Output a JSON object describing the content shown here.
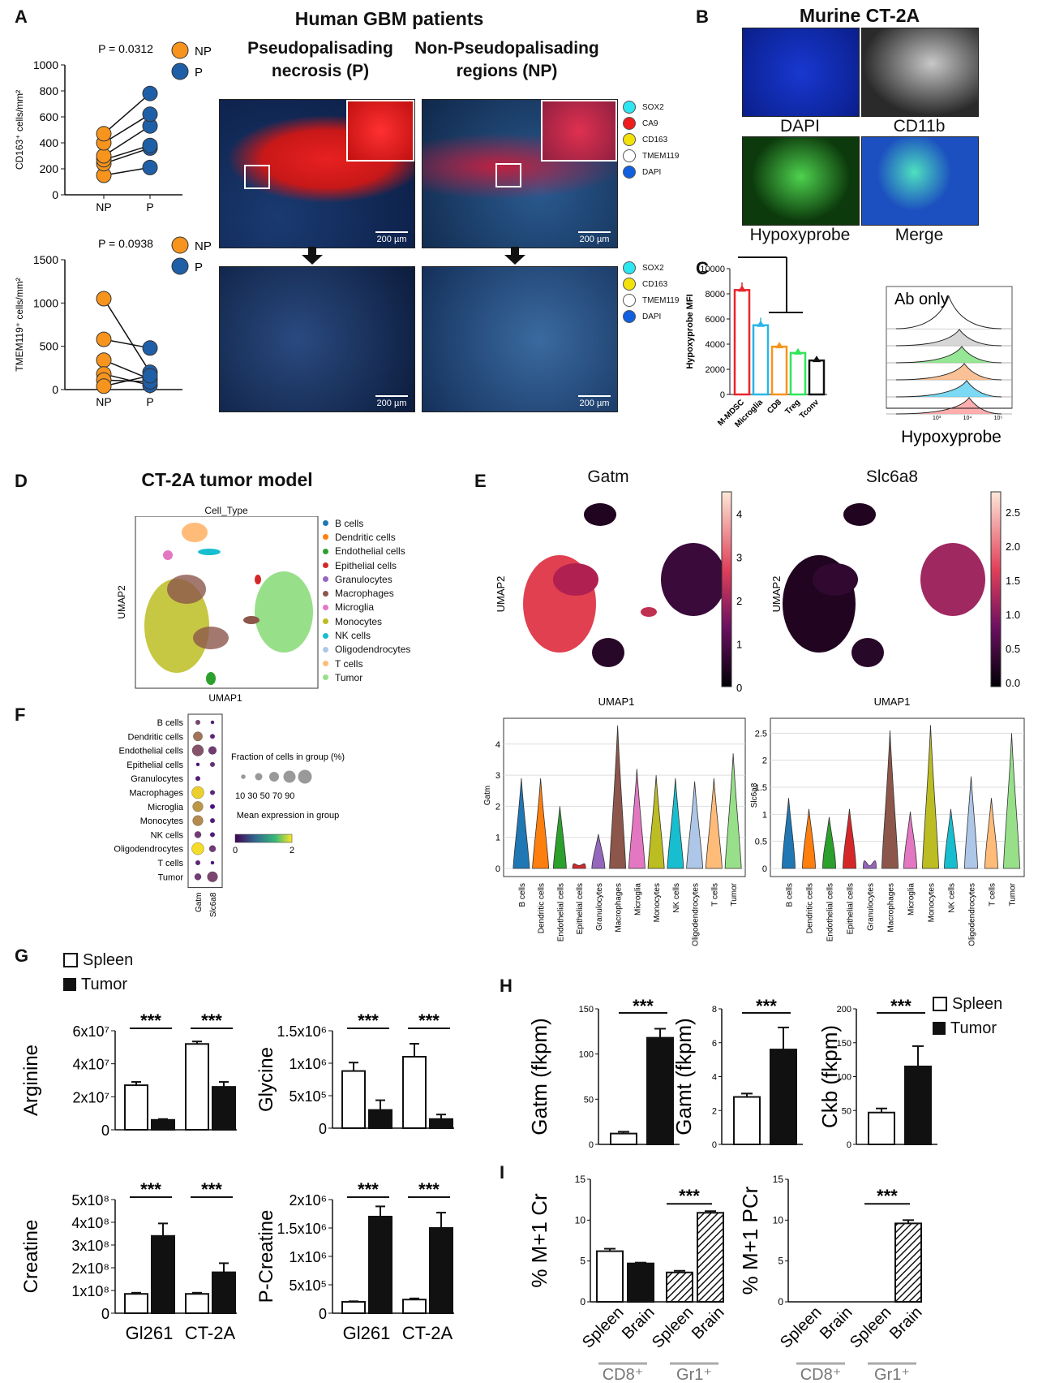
{
  "panels": {
    "A": "A",
    "B": "B",
    "C": "C",
    "D": "D",
    "E": "E",
    "F": "F",
    "G": "G",
    "H": "H",
    "I": "I"
  },
  "panelA": {
    "title": "Human GBM patients",
    "col_p": "Pseudopalisading necrosis (P)",
    "col_np": "Non-Pseudopalisading regions (NP)",
    "scale": "200 µm",
    "legend_top": [
      {
        "label": "SOX2",
        "color": "#2ee6f0"
      },
      {
        "label": "CA9",
        "color": "#ee1c1c"
      },
      {
        "label": "CD163",
        "color": "#f2e20a"
      },
      {
        "label": "TMEM119",
        "color": "#ffffff"
      },
      {
        "label": "DAPI",
        "color": "#1060e0"
      }
    ],
    "legend_bottom": [
      {
        "label": "SOX2",
        "color": "#2ee6f0"
      },
      {
        "label": "CD163",
        "color": "#f2e20a"
      },
      {
        "label": "TMEM119",
        "color": "#ffffff"
      },
      {
        "label": "DAPI",
        "color": "#1060e0"
      }
    ]
  },
  "panelB": {
    "title": "Murine CT-2A",
    "labels": [
      "DAPI",
      "CD11b",
      "Hypoxyprobe",
      "Merge"
    ]
  },
  "panelD": {
    "title": "CT-2A tumor model",
    "plot_title": "Cell_Type",
    "xlabel": "UMAP1",
    "ylabel": "UMAP2",
    "legend": [
      {
        "label": "B cells",
        "color": "#1f77b4"
      },
      {
        "label": "Dendritic cells",
        "color": "#ff7f0e"
      },
      {
        "label": "Endothelial cells",
        "color": "#2ca02c"
      },
      {
        "label": "Epithelial cells",
        "color": "#d62728"
      },
      {
        "label": "Granulocytes",
        "color": "#9467bd"
      },
      {
        "label": "Macrophages",
        "color": "#8c564b"
      },
      {
        "label": "Microglia",
        "color": "#e377c2"
      },
      {
        "label": "Monocytes",
        "color": "#bcbd22"
      },
      {
        "label": "NK cells",
        "color": "#17becf"
      },
      {
        "label": "Oligodendrocytes",
        "color": "#aec7e8"
      },
      {
        "label": "T cells",
        "color": "#ffbb78"
      },
      {
        "label": "Tumor",
        "color": "#98df8a"
      }
    ]
  },
  "panelE": {
    "left_title": "Gatm",
    "right_title": "Slc6a8",
    "xlabel": "UMAP1",
    "ylabel": "UMAP2",
    "left_ticks": [
      "4",
      "3",
      "2",
      "1",
      "0"
    ],
    "right_ticks": [
      "2.5",
      "2.0",
      "1.5",
      "1.0",
      "0.5",
      "0.0"
    ]
  },
  "chart_data": [
    {
      "id": "A1",
      "type": "paired-scatter",
      "ylabel": "CD163⁺ cells/mm²",
      "categories": [
        "NP",
        "P"
      ],
      "ylim": [
        0,
        1000
      ],
      "yticks": [
        0,
        200,
        400,
        600,
        800,
        1000
      ],
      "annotation": "P = 0.0312",
      "legend": [
        {
          "label": "NP",
          "color": "#f7941d"
        },
        {
          "label": "P",
          "color": "#1f5fa8"
        }
      ],
      "pairs": [
        [
          150,
          210
        ],
        [
          240,
          360
        ],
        [
          270,
          380
        ],
        [
          300,
          530
        ],
        [
          400,
          620
        ],
        [
          470,
          780
        ]
      ]
    },
    {
      "id": "A2",
      "type": "paired-scatter",
      "ylabel": "TMEM119⁺ cells/mm²",
      "categories": [
        "NP",
        "P"
      ],
      "ylim": [
        0,
        1500
      ],
      "yticks": [
        0,
        500,
        1000,
        1500
      ],
      "annotation": "P = 0.0938",
      "legend": [
        {
          "label": "NP",
          "color": "#f7941d"
        },
        {
          "label": "P",
          "color": "#1f5fa8"
        }
      ],
      "pairs": [
        [
          1050,
          200
        ],
        [
          580,
          480
        ],
        [
          340,
          120
        ],
        [
          180,
          50
        ],
        [
          110,
          90
        ],
        [
          40,
          160
        ]
      ]
    },
    {
      "id": "C1",
      "type": "bar",
      "ylabel": "Hypoxyprobe MFI",
      "categories": [
        "M-MDSC",
        "Microglia",
        "CD8",
        "Treg",
        "Tconv"
      ],
      "values": [
        8300,
        5500,
        3800,
        3300,
        2700
      ],
      "errors": [
        600,
        600,
        200,
        150,
        200
      ],
      "colors": [
        "#e8262b",
        "#2bb6e8",
        "#f7941d",
        "#2ee65a",
        "#111111"
      ],
      "ylim": [
        0,
        10000
      ],
      "yticks": [
        0,
        2000,
        4000,
        6000,
        8000,
        10000
      ],
      "annotation": "*"
    },
    {
      "id": "C2",
      "type": "histogram-overlay",
      "xlabel": "Hypoxyprobe",
      "label": "Ab only",
      "xticks": [
        "10³",
        "10⁴",
        "10⁵"
      ]
    },
    {
      "id": "F",
      "type": "dotplot",
      "genes": [
        "Gatm",
        "Slc6a8"
      ],
      "groups": [
        "B cells",
        "Dendritic cells",
        "Endothelial cells",
        "Epithelial cells",
        "Granulocytes",
        "Macrophages",
        "Microglia",
        "Monocytes",
        "NK cells",
        "Oligodendrocytes",
        "T cells",
        "Tumor"
      ],
      "mean_expression": [
        [
          0.6,
          0.2
        ],
        [
          1.0,
          0.3
        ],
        [
          0.7,
          0.5
        ],
        [
          0.1,
          0.4
        ],
        [
          0.2,
          0.0
        ],
        [
          1.8,
          0.3
        ],
        [
          1.3,
          0.1
        ],
        [
          1.2,
          0.2
        ],
        [
          0.5,
          0.2
        ],
        [
          1.9,
          0.5
        ],
        [
          0.3,
          0.1
        ],
        [
          0.5,
          0.6
        ]
      ],
      "fraction": [
        [
          10,
          5
        ],
        [
          40,
          10
        ],
        [
          60,
          30
        ],
        [
          5,
          10
        ],
        [
          10,
          0
        ],
        [
          70,
          10
        ],
        [
          50,
          10
        ],
        [
          50,
          10
        ],
        [
          20,
          10
        ],
        [
          70,
          20
        ],
        [
          10,
          5
        ],
        [
          20,
          50
        ]
      ],
      "size_legend_title": "Fraction of cells in group (%)",
      "size_legend": "10 30 50 70 90",
      "color_legend_title": "Mean expression in group",
      "color_range": [
        "0",
        "2"
      ]
    },
    {
      "id": "E1",
      "type": "violin",
      "ylabel": "Gatm",
      "categories": [
        "B cells",
        "Dendritic cells",
        "Endothelial cells",
        "Epithelial cells",
        "Granulocytes",
        "Macrophages",
        "Microglia",
        "Monocytes",
        "NK cells",
        "Oligodendrocytes",
        "T cells",
        "Tumor"
      ],
      "max": [
        2.9,
        2.9,
        2.0,
        0.1,
        1.1,
        4.6,
        3.2,
        3.0,
        2.9,
        2.8,
        2.9,
        3.7
      ],
      "ylim": [
        0,
        4.7
      ],
      "yticks": [
        0,
        1,
        2,
        3,
        4
      ]
    },
    {
      "id": "E2",
      "type": "violin",
      "ylabel": "Slc6a8",
      "categories": [
        "B cells",
        "Dendritic cells",
        "Endothelial cells",
        "Epithelial cells",
        "Granulocytes",
        "Macrophages",
        "Microglia",
        "Monocytes",
        "NK cells",
        "Oligodendrocytes",
        "T cells",
        "Tumor"
      ],
      "max": [
        1.3,
        1.1,
        0.95,
        1.1,
        0.05,
        2.55,
        1.05,
        2.65,
        1.1,
        1.7,
        1.3,
        2.5
      ],
      "ylim": [
        0,
        2.7
      ],
      "yticks": [
        0,
        0.5,
        1.0,
        1.5,
        2.0,
        2.5
      ]
    },
    {
      "id": "G1",
      "type": "bar",
      "ylabel": "Arginine",
      "categories": [
        "Gl261",
        "CT-2A"
      ],
      "series": [
        {
          "name": "Spleen",
          "values": [
            27000000.0,
            52000000.0
          ],
          "errors": [
            2000000.0,
            1500000.0
          ]
        },
        {
          "name": "Tumor",
          "values": [
            6000000.0,
            26000000.0
          ],
          "errors": [
            500000.0,
            3000000.0
          ]
        }
      ],
      "ylim": [
        0,
        60000000.0
      ],
      "yticks": [
        "0",
        "2x10⁷",
        "4x10⁷",
        "6x10⁷"
      ],
      "annotation": "***"
    },
    {
      "id": "G2",
      "type": "bar",
      "ylabel": "Glycine",
      "categories": [
        "Gl261",
        "CT-2A"
      ],
      "series": [
        {
          "name": "Spleen",
          "values": [
            880000.0,
            1100000.0
          ],
          "errors": [
            130000.0,
            200000.0
          ]
        },
        {
          "name": "Tumor",
          "values": [
            280000.0,
            140000.0
          ],
          "errors": [
            150000.0,
            70000.0
          ]
        }
      ],
      "ylim": [
        0,
        1500000.0
      ],
      "yticks": [
        "0",
        "5x10⁵",
        "1x10⁶",
        "1.5x10⁶"
      ],
      "annotation": "***"
    },
    {
      "id": "G3",
      "type": "bar",
      "ylabel": "Creatine",
      "categories": [
        "Gl261",
        "CT-2A"
      ],
      "series": [
        {
          "name": "Spleen",
          "values": [
            85000000.0,
            85000000.0
          ],
          "errors": [
            5000000.0,
            5000000.0
          ]
        },
        {
          "name": "Tumor",
          "values": [
            340000000.0,
            180000000.0
          ],
          "errors": [
            55000000.0,
            40000000.0
          ]
        }
      ],
      "ylim": [
        0,
        500000000.0
      ],
      "yticks": [
        "0",
        "1x10⁸",
        "2x10⁸",
        "3x10⁸",
        "4x10⁸",
        "5x10⁸"
      ],
      "annotation": "***"
    },
    {
      "id": "G4",
      "type": "bar",
      "ylabel": "P-Creatine",
      "categories": [
        "Gl261",
        "CT-2A"
      ],
      "series": [
        {
          "name": "Spleen",
          "values": [
            200000.0,
            240000.0
          ],
          "errors": [
            10000.0,
            20000.0
          ]
        },
        {
          "name": "Tumor",
          "values": [
            1700000.0,
            1500000.0
          ],
          "errors": [
            180000.0,
            270000.0
          ]
        }
      ],
      "ylim": [
        0,
        2000000.0
      ],
      "yticks": [
        "0",
        "5x10⁵",
        "1x10⁶",
        "1.5x10⁶",
        "2x10⁶"
      ],
      "annotation": "***"
    },
    {
      "id": "H1",
      "type": "bar",
      "ylabel": "Gatm (fkpm)",
      "categories": [
        "Spleen",
        "Tumor"
      ],
      "values": [
        12,
        118
      ],
      "errors": [
        2,
        10
      ],
      "ylim": [
        0,
        150
      ],
      "yticks": [
        0,
        50,
        100,
        150
      ],
      "annotation": "***"
    },
    {
      "id": "H2",
      "type": "bar",
      "ylabel": "Gamt (fkpm)",
      "categories": [
        "Spleen",
        "Tumor"
      ],
      "values": [
        2.8,
        5.6
      ],
      "errors": [
        0.2,
        1.3
      ],
      "ylim": [
        0,
        8
      ],
      "yticks": [
        0,
        2,
        4,
        6,
        8
      ],
      "annotation": "***"
    },
    {
      "id": "H3",
      "type": "bar",
      "ylabel": "Ckb (fkpm)",
      "categories": [
        "Spleen",
        "Tumor"
      ],
      "values": [
        47,
        115
      ],
      "errors": [
        6,
        30
      ],
      "ylim": [
        0,
        200
      ],
      "yticks": [
        0,
        50,
        100,
        150,
        200
      ],
      "annotation": "***"
    },
    {
      "id": "I1",
      "type": "bar",
      "ylabel": "% M+1 Cr",
      "categories": [
        "Spleen",
        "Brain",
        "Spleen",
        "Brain"
      ],
      "groups": [
        "CD8⁺",
        "Gr1⁺"
      ],
      "values": [
        6.2,
        4.7,
        3.6,
        10.9
      ],
      "errors": [
        0.3,
        0.1,
        0.2,
        0.2
      ],
      "ylim": [
        0,
        15
      ],
      "yticks": [
        0,
        5,
        10,
        15
      ],
      "annotation": "***"
    },
    {
      "id": "I2",
      "type": "bar",
      "ylabel": "% M+1 PCr",
      "categories": [
        "Spleen",
        "Brain",
        "Spleen",
        "Brain"
      ],
      "groups": [
        "CD8⁺",
        "Gr1⁺"
      ],
      "values": [
        0,
        0,
        0,
        9.6
      ],
      "errors": [
        0,
        0,
        0,
        0.4
      ],
      "ylim": [
        0,
        15
      ],
      "yticks": [
        0,
        5,
        10,
        15
      ],
      "annotation": "***"
    }
  ],
  "legendG": {
    "spleen": "Spleen",
    "tumor": "Tumor"
  },
  "legendH": {
    "spleen": "Spleen",
    "tumor": "Tumor"
  }
}
